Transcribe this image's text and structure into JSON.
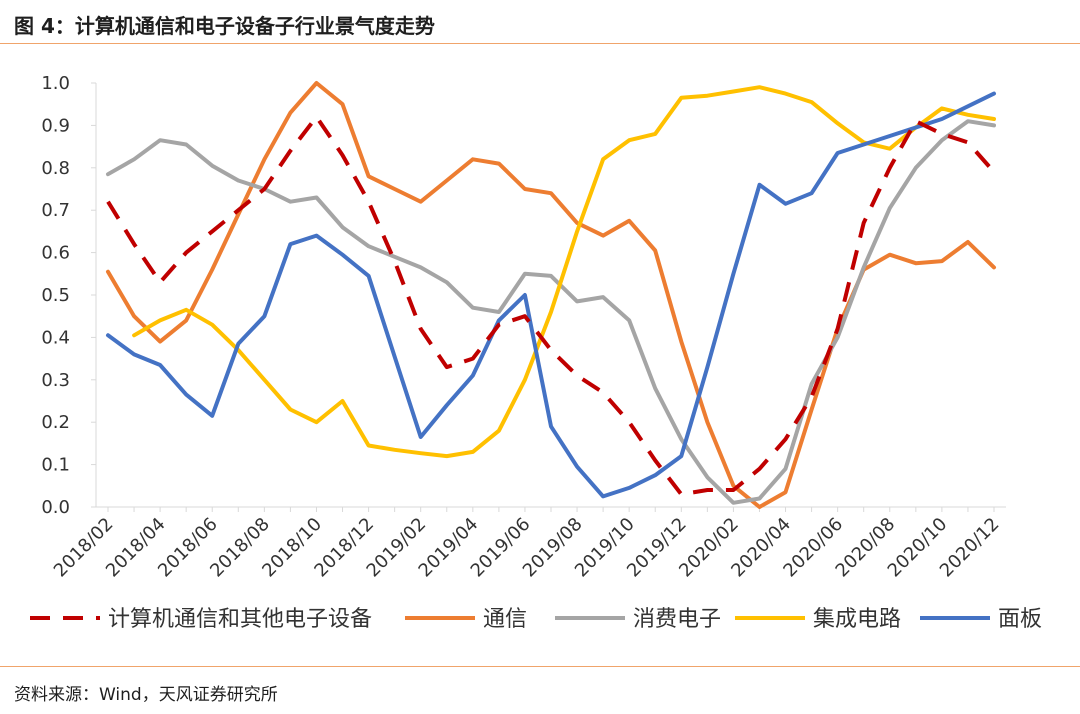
{
  "header": {
    "title": "图 4：计算机通信和电子设备子行业景气度走势"
  },
  "footer": {
    "source": "资料来源：Wind，天风证券研究所"
  },
  "chart_data": {
    "type": "line",
    "title": "",
    "xlabel": "",
    "ylabel": "",
    "ylim": [
      0,
      1.0
    ],
    "y_ticks": [
      "0.0",
      "0.1",
      "0.2",
      "0.3",
      "0.4",
      "0.5",
      "0.6",
      "0.7",
      "0.8",
      "0.9",
      "1.0"
    ],
    "x_tick_labels": [
      "2018/02",
      "2018/04",
      "2018/06",
      "2018/08",
      "2018/10",
      "2018/12",
      "2019/02",
      "2019/04",
      "2019/06",
      "2019/08",
      "2019/10",
      "2019/12",
      "2020/02",
      "2020/04",
      "2020/06",
      "2020/08",
      "2020/10",
      "2020/12"
    ],
    "x": [
      "2018/02",
      "2018/03",
      "2018/04",
      "2018/05",
      "2018/06",
      "2018/07",
      "2018/08",
      "2018/09",
      "2018/10",
      "2018/11",
      "2018/12",
      "2019/01",
      "2019/02",
      "2019/03",
      "2019/04",
      "2019/05",
      "2019/06",
      "2019/07",
      "2019/08",
      "2019/09",
      "2019/10",
      "2019/11",
      "2019/12",
      "2020/01",
      "2020/02",
      "2020/03",
      "2020/04",
      "2020/05",
      "2020/06",
      "2020/07",
      "2020/08",
      "2020/09",
      "2020/10",
      "2020/11",
      "2020/12"
    ],
    "legend_position": "bottom",
    "grid": false,
    "series": [
      {
        "name": "计算机通信和其他电子设备",
        "color": "#c00000",
        "style": "dashed",
        "values": [
          0.72,
          0.62,
          0.53,
          0.6,
          0.65,
          0.7,
          0.75,
          0.84,
          0.92,
          0.83,
          0.72,
          0.58,
          0.42,
          0.33,
          0.35,
          0.43,
          0.45,
          0.37,
          0.31,
          0.27,
          0.2,
          0.11,
          0.03,
          0.04,
          0.04,
          0.09,
          0.16,
          0.26,
          0.42,
          0.67,
          0.8,
          0.91,
          0.88,
          0.86,
          0.79
        ]
      },
      {
        "name": "通信",
        "color": "#ed7d31",
        "style": "solid",
        "values": [
          0.555,
          0.45,
          0.39,
          0.44,
          0.56,
          0.69,
          0.82,
          0.93,
          1.0,
          0.95,
          0.78,
          0.75,
          0.72,
          0.77,
          0.82,
          0.81,
          0.75,
          0.74,
          0.67,
          0.64,
          0.675,
          0.605,
          0.39,
          0.2,
          0.05,
          0.0,
          0.035,
          0.23,
          0.42,
          0.56,
          0.595,
          0.575,
          0.58,
          0.625,
          0.565
        ]
      },
      {
        "name": "消费电子",
        "color": "#a5a5a5",
        "style": "solid",
        "values": [
          0.785,
          0.82,
          0.865,
          0.855,
          0.805,
          0.77,
          0.75,
          0.72,
          0.73,
          0.66,
          0.615,
          0.59,
          0.565,
          0.53,
          0.47,
          0.46,
          0.55,
          0.545,
          0.485,
          0.495,
          0.44,
          0.28,
          0.16,
          0.07,
          0.01,
          0.02,
          0.09,
          0.29,
          0.4,
          0.565,
          0.705,
          0.8,
          0.865,
          0.91,
          0.9
        ]
      },
      {
        "name": "集成电路",
        "color": "#ffc000",
        "style": "solid",
        "values": [
          null,
          0.405,
          0.44,
          0.465,
          0.43,
          0.37,
          0.3,
          0.23,
          0.2,
          0.25,
          0.145,
          0.135,
          0.127,
          0.12,
          0.13,
          0.18,
          0.3,
          0.46,
          0.65,
          0.82,
          0.865,
          0.88,
          0.965,
          0.97,
          0.98,
          0.99,
          0.975,
          0.955,
          0.905,
          0.86,
          0.845,
          0.895,
          0.94,
          0.925,
          0.915
        ]
      },
      {
        "name": "面板",
        "color": "#4472c4",
        "style": "solid",
        "values": [
          0.405,
          0.36,
          0.335,
          0.265,
          0.215,
          0.385,
          0.45,
          0.62,
          0.64,
          0.595,
          0.545,
          0.355,
          0.165,
          0.24,
          0.31,
          0.44,
          0.5,
          0.19,
          0.095,
          0.025,
          0.045,
          0.075,
          0.12,
          0.33,
          0.55,
          0.76,
          0.715,
          0.74,
          0.835,
          0.855,
          0.875,
          0.895,
          0.915,
          0.945,
          0.975
        ]
      }
    ]
  }
}
